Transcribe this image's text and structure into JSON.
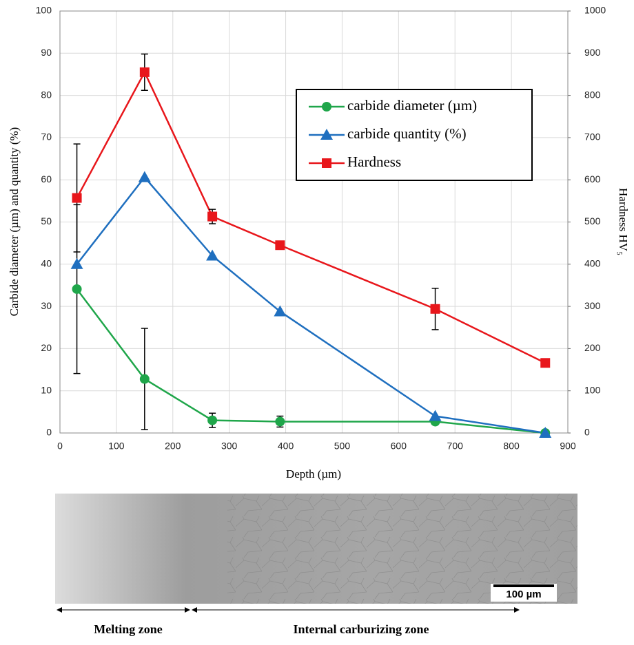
{
  "chart_data": {
    "type": "line",
    "x_label": "Depth (µm)",
    "y_label": "Carbide diameter (µm) and quantity (%)",
    "y2_label": "Hardness HV₅",
    "x": [
      30,
      150,
      270,
      390,
      665,
      860
    ],
    "xlim": [
      0,
      900
    ],
    "xticks": [
      0,
      100,
      200,
      300,
      400,
      500,
      600,
      700,
      800,
      900
    ],
    "ylim": [
      0,
      100
    ],
    "yticks": [
      0,
      10,
      20,
      30,
      40,
      50,
      60,
      70,
      80,
      90,
      100
    ],
    "y2lim": [
      0,
      1000
    ],
    "y2ticks": [
      0,
      100,
      200,
      300,
      400,
      500,
      600,
      700,
      800,
      900,
      1000
    ],
    "grid": true,
    "series": [
      {
        "name": "carbide diameter (µm)",
        "color": "#1fa64a",
        "marker": "circle",
        "values": [
          34.1,
          12.8,
          3.0,
          2.7,
          2.7,
          0
        ],
        "errors": [
          20,
          12,
          1.7,
          1.3,
          null,
          null
        ]
      },
      {
        "name": "carbide quantity (%)",
        "color": "#1f6fbf",
        "marker": "triangle",
        "values": [
          40,
          60.6,
          42,
          28.8,
          4,
          0
        ]
      },
      {
        "name": "Hardness",
        "color": "#e8161b",
        "marker": "square",
        "axis": "y2",
        "values": [
          557,
          855,
          513,
          445,
          294,
          166
        ],
        "errors": [
          128,
          43,
          17,
          null,
          49,
          null
        ]
      }
    ]
  },
  "micrograph": {
    "scale_bar": "100 µm",
    "zones": [
      "Melting zone",
      "Internal carburizing zone"
    ]
  }
}
